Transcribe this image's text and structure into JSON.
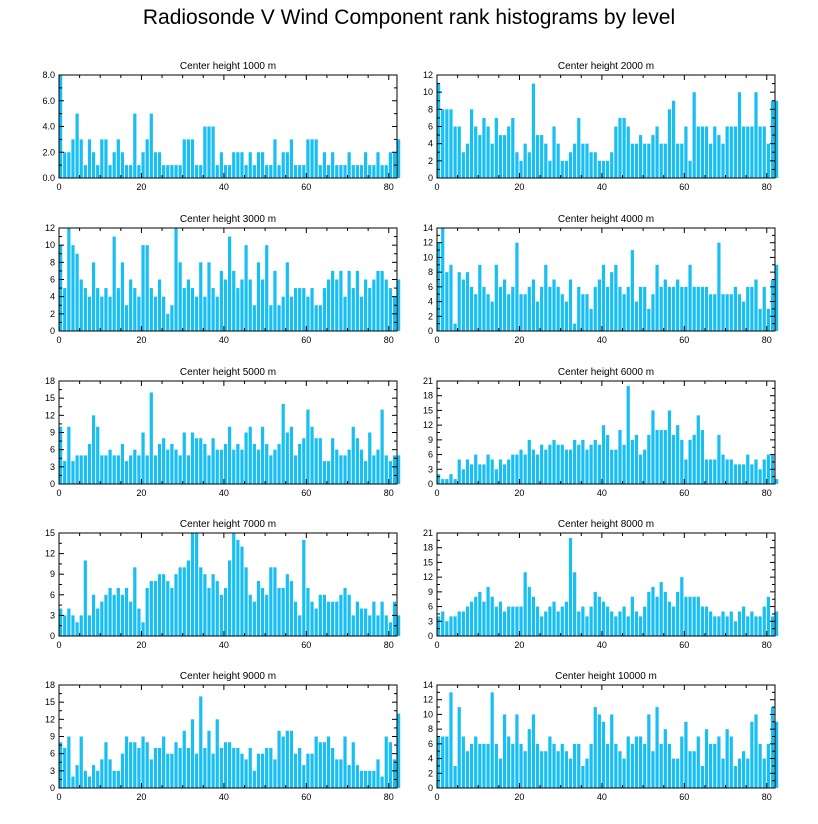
{
  "title": "Radiosonde V Wind Component rank histograms by level",
  "chart_data": [
    {
      "type": "bar",
      "title": "Center height 1000 m",
      "x_start": 0,
      "xlim": [
        0,
        82
      ],
      "xticks": [
        0,
        20,
        40,
        60,
        80
      ],
      "xtick_labels": [
        "0",
        "20",
        "40",
        "60",
        "80"
      ],
      "ylim": [
        0,
        8
      ],
      "yticks": [
        0,
        2,
        4,
        6,
        8
      ],
      "ytick_labels": [
        "0.0",
        "2.0",
        "4.0",
        "6.0",
        "8.0"
      ],
      "values": [
        8,
        2,
        2,
        3,
        5,
        3,
        1,
        3,
        2,
        1,
        3,
        3,
        1,
        2,
        3,
        2,
        1,
        1,
        5,
        1,
        2,
        3,
        5,
        2,
        2,
        1,
        1,
        1,
        1,
        1,
        3,
        3,
        3,
        1,
        1,
        4,
        4,
        4,
        1,
        2,
        1,
        1,
        2,
        2,
        2,
        1,
        2,
        1,
        2,
        2,
        1,
        1,
        3,
        1,
        2,
        2,
        3,
        1,
        1,
        1,
        3,
        3,
        3,
        1,
        2,
        1,
        2,
        1,
        1,
        1,
        2,
        1,
        1,
        1,
        2,
        1,
        1,
        2,
        1,
        1,
        2,
        2,
        3
      ]
    },
    {
      "type": "bar",
      "title": "Center height 2000 m",
      "x_start": 0,
      "xlim": [
        0,
        82
      ],
      "xticks": [
        0,
        20,
        40,
        60,
        80
      ],
      "xtick_labels": [
        "0",
        "20",
        "40",
        "60",
        "80"
      ],
      "ylim": [
        0,
        12
      ],
      "yticks": [
        0,
        2,
        4,
        6,
        8,
        10,
        12
      ],
      "ytick_labels": [
        "0",
        "2",
        "4",
        "6",
        "8",
        "10",
        "12"
      ],
      "values": [
        11,
        8,
        8,
        8,
        6,
        6,
        3,
        4,
        8,
        6,
        5,
        7,
        6,
        4,
        7,
        5,
        5,
        6,
        7,
        3,
        2,
        4,
        3,
        11,
        5,
        5,
        4,
        2,
        6,
        4,
        2,
        2,
        3,
        4,
        7,
        4,
        4,
        3,
        3,
        2,
        2,
        2,
        3,
        6,
        7,
        7,
        6,
        4,
        4,
        5,
        4,
        4,
        5,
        6,
        4,
        4,
        8,
        9,
        4,
        4,
        6,
        2,
        10,
        6,
        6,
        6,
        4,
        6,
        5,
        4,
        6,
        6,
        6,
        10,
        6,
        6,
        6,
        10,
        6,
        6,
        4,
        9,
        9
      ]
    },
    {
      "type": "bar",
      "title": "Center height 3000 m",
      "x_start": 0,
      "xlim": [
        0,
        82
      ],
      "xticks": [
        0,
        20,
        40,
        60,
        80
      ],
      "xtick_labels": [
        "0",
        "20",
        "40",
        "60",
        "80"
      ],
      "ylim": [
        0,
        12
      ],
      "yticks": [
        0,
        2,
        4,
        6,
        8,
        10,
        12
      ],
      "ytick_labels": [
        "0",
        "2",
        "4",
        "6",
        "8",
        "10",
        "12"
      ],
      "values": [
        10,
        5,
        12,
        10,
        9,
        6,
        5,
        4,
        8,
        5,
        4,
        5,
        4,
        11,
        5,
        8,
        3,
        6,
        5,
        4,
        10,
        10,
        5,
        4,
        6,
        4,
        2,
        3,
        12,
        8,
        5,
        6,
        5,
        4,
        8,
        4,
        8,
        5,
        4,
        7,
        6,
        11,
        7,
        5,
        6,
        10,
        6,
        3,
        8,
        6,
        10,
        3,
        7,
        3,
        4,
        8,
        4,
        5,
        5,
        5,
        4,
        5,
        3,
        3,
        5,
        6,
        7,
        6,
        7,
        4,
        7,
        5,
        7,
        4,
        6,
        5,
        6,
        7,
        7,
        6,
        5,
        4,
        6
      ]
    },
    {
      "type": "bar",
      "title": "Center height 4000 m",
      "x_start": 0,
      "xlim": [
        0,
        82
      ],
      "xticks": [
        0,
        20,
        40,
        60,
        80
      ],
      "xtick_labels": [
        "0",
        "20",
        "40",
        "60",
        "80"
      ],
      "ylim": [
        0,
        14
      ],
      "yticks": [
        0,
        2,
        4,
        6,
        8,
        10,
        12,
        14
      ],
      "ytick_labels": [
        "0",
        "2",
        "4",
        "6",
        "8",
        "10",
        "12",
        "14"
      ],
      "values": [
        12,
        14,
        8,
        9,
        1,
        8,
        7,
        8,
        6,
        5,
        9,
        6,
        5,
        4,
        9,
        6,
        7,
        5,
        6,
        12,
        5,
        5,
        6,
        7,
        4,
        6,
        9,
        6,
        7,
        6,
        5,
        4,
        7,
        1,
        6,
        5,
        5,
        3,
        6,
        7,
        9,
        6,
        8,
        9,
        6,
        5,
        6,
        11,
        4,
        6,
        6,
        3,
        5,
        9,
        6,
        7,
        6,
        6,
        7,
        6,
        6,
        9,
        6,
        6,
        6,
        6,
        5,
        5,
        12,
        5,
        5,
        5,
        6,
        5,
        4,
        6,
        6,
        7,
        3,
        6,
        3,
        7,
        9
      ]
    },
    {
      "type": "bar",
      "title": "Center height 5000 m",
      "x_start": 0,
      "xlim": [
        0,
        82
      ],
      "xticks": [
        0,
        20,
        40,
        60,
        80
      ],
      "xtick_labels": [
        "0",
        "20",
        "40",
        "60",
        "80"
      ],
      "ylim": [
        0,
        18
      ],
      "yticks": [
        0,
        3,
        6,
        9,
        12,
        15,
        18
      ],
      "ytick_labels": [
        "0",
        "3",
        "6",
        "9",
        "12",
        "15",
        "18"
      ],
      "values": [
        10,
        4,
        10,
        4,
        5,
        5,
        5,
        7,
        12,
        10,
        5,
        5,
        6,
        5,
        5,
        7,
        4,
        5,
        6,
        5,
        9,
        5,
        16,
        5,
        7,
        8,
        6,
        7,
        6,
        5,
        9,
        5,
        9,
        8,
        8,
        7,
        5,
        8,
        6,
        6,
        7,
        10,
        6,
        7,
        6,
        9,
        10,
        7,
        6,
        10,
        7,
        5,
        6,
        7,
        14,
        9,
        10,
        5,
        7,
        8,
        13,
        10,
        8,
        8,
        4,
        4,
        8,
        6,
        5,
        5,
        6,
        10,
        8,
        6,
        4,
        9,
        5,
        6,
        13,
        5,
        4,
        5,
        5
      ]
    },
    {
      "type": "bar",
      "title": "Center height 6000 m",
      "x_start": 0,
      "xlim": [
        0,
        82
      ],
      "xticks": [
        0,
        20,
        40,
        60,
        80
      ],
      "xtick_labels": [
        "0",
        "20",
        "40",
        "60",
        "80"
      ],
      "ylim": [
        0,
        21
      ],
      "yticks": [
        0,
        3,
        6,
        9,
        12,
        15,
        18,
        21
      ],
      "ytick_labels": [
        "0",
        "3",
        "6",
        "9",
        "12",
        "15",
        "18",
        "21"
      ],
      "values": [
        2,
        1,
        1,
        2,
        1,
        5,
        3,
        5,
        4,
        6,
        4,
        4,
        6,
        5,
        3,
        5,
        4,
        5,
        6,
        6,
        7,
        6,
        9,
        7,
        6,
        8,
        7,
        8,
        9,
        8,
        8,
        7,
        7,
        9,
        8,
        9,
        7,
        8,
        9,
        8,
        12,
        10,
        7,
        7,
        11,
        8,
        20,
        9,
        10,
        6,
        7,
        10,
        15,
        11,
        11,
        11,
        15,
        10,
        12,
        9,
        5,
        9,
        10,
        14,
        11,
        5,
        5,
        5,
        10,
        6,
        5,
        5,
        4,
        4,
        4,
        6,
        4,
        5,
        3,
        5,
        6,
        6,
        1
      ]
    },
    {
      "type": "bar",
      "title": "Center height 7000 m",
      "x_start": 0,
      "xlim": [
        0,
        82
      ],
      "xticks": [
        0,
        20,
        40,
        60,
        80
      ],
      "xtick_labels": [
        "0",
        "20",
        "40",
        "60",
        "80"
      ],
      "ylim": [
        0,
        15
      ],
      "yticks": [
        0,
        3,
        6,
        9,
        12,
        15
      ],
      "ytick_labels": [
        "0",
        "3",
        "6",
        "9",
        "12",
        "15"
      ],
      "values": [
        4,
        3,
        4,
        3,
        2,
        3,
        11,
        3,
        6,
        4,
        5,
        6,
        7,
        6,
        7,
        6,
        7,
        5,
        10,
        4,
        2,
        7,
        8,
        8,
        9,
        9,
        8,
        7,
        9,
        10,
        10,
        11,
        15,
        15,
        10,
        9,
        7,
        9,
        8,
        6,
        7,
        11,
        15,
        14,
        13,
        10,
        6,
        5,
        8,
        7,
        6,
        10,
        10,
        7,
        7,
        9,
        8,
        5,
        3,
        14,
        7,
        5,
        4,
        6,
        6,
        5,
        5,
        5,
        6,
        7,
        6,
        3,
        5,
        4,
        4,
        3,
        5,
        3,
        5,
        3,
        2,
        5,
        3
      ]
    },
    {
      "type": "bar",
      "title": "Center height 8000 m",
      "x_start": 0,
      "xlim": [
        0,
        82
      ],
      "xticks": [
        0,
        20,
        40,
        60,
        80
      ],
      "xtick_labels": [
        "0",
        "20",
        "40",
        "60",
        "80"
      ],
      "ylim": [
        0,
        21
      ],
      "yticks": [
        0,
        3,
        6,
        9,
        12,
        15,
        18,
        21
      ],
      "ytick_labels": [
        "0",
        "3",
        "6",
        "9",
        "12",
        "15",
        "18",
        "21"
      ],
      "values": [
        4,
        5,
        3,
        4,
        4,
        5,
        5,
        6,
        7,
        8,
        9,
        7,
        10,
        8,
        6,
        7,
        5,
        6,
        6,
        6,
        6,
        13,
        10,
        8,
        6,
        4,
        5,
        6,
        7,
        5,
        6,
        7,
        20,
        13,
        5,
        6,
        4,
        6,
        9,
        8,
        7,
        6,
        5,
        4,
        5,
        6,
        4,
        8,
        5,
        4,
        6,
        9,
        10,
        8,
        11,
        9,
        7,
        6,
        9,
        12,
        8,
        8,
        8,
        8,
        6,
        6,
        5,
        4,
        4,
        5,
        4,
        5,
        3,
        5,
        6,
        4,
        5,
        4,
        4,
        6,
        8,
        4,
        5
      ]
    },
    {
      "type": "bar",
      "title": "Center height 9000 m",
      "x_start": 0,
      "xlim": [
        0,
        82
      ],
      "xticks": [
        0,
        20,
        40,
        60,
        80
      ],
      "xtick_labels": [
        "0",
        "20",
        "40",
        "60",
        "80"
      ],
      "ylim": [
        0,
        18
      ],
      "yticks": [
        0,
        3,
        6,
        9,
        12,
        15,
        18
      ],
      "ytick_labels": [
        "0",
        "3",
        "6",
        "9",
        "12",
        "15",
        "18"
      ],
      "values": [
        8,
        7,
        9,
        2,
        4,
        9,
        3,
        2,
        4,
        3,
        5,
        8,
        5,
        3,
        3,
        6,
        9,
        8,
        8,
        7,
        9,
        8,
        5,
        7,
        7,
        9,
        6,
        6,
        8,
        7,
        10,
        7,
        12,
        6,
        16,
        7,
        10,
        6,
        12,
        7,
        8,
        8,
        7,
        7,
        6,
        5,
        7,
        3,
        6,
        6,
        7,
        7,
        5,
        10,
        9,
        10,
        10,
        6,
        7,
        4,
        6,
        6,
        9,
        8,
        8,
        9,
        7,
        5,
        5,
        9,
        4,
        8,
        4,
        3,
        3,
        3,
        3,
        5,
        2,
        9,
        8,
        5,
        13
      ]
    },
    {
      "type": "bar",
      "title": "Center height 10000 m",
      "x_start": 0,
      "xlim": [
        0,
        82
      ],
      "xticks": [
        0,
        20,
        40,
        60,
        80
      ],
      "xtick_labels": [
        "0",
        "20",
        "40",
        "60",
        "80"
      ],
      "ylim": [
        0,
        14
      ],
      "yticks": [
        0,
        2,
        4,
        6,
        8,
        10,
        12,
        14
      ],
      "ytick_labels": [
        "0",
        "2",
        "4",
        "6",
        "8",
        "10",
        "12",
        "14"
      ],
      "values": [
        7,
        7,
        7,
        13,
        3,
        11,
        7,
        5,
        6,
        7,
        6,
        6,
        6,
        13,
        6,
        4,
        10,
        7,
        6,
        10,
        6,
        5,
        8,
        10,
        6,
        5,
        5,
        7,
        6,
        5,
        6,
        5,
        4,
        6,
        6,
        3,
        4,
        6,
        11,
        10,
        9,
        6,
        10,
        6,
        5,
        4,
        7,
        6,
        7,
        7,
        6,
        10,
        5,
        11,
        6,
        8,
        6,
        4,
        4,
        7,
        9,
        5,
        5,
        7,
        3,
        8,
        6,
        6,
        7,
        4,
        8,
        7,
        3,
        4,
        5,
        4,
        9,
        10,
        6,
        4,
        6,
        11,
        9
      ]
    }
  ]
}
